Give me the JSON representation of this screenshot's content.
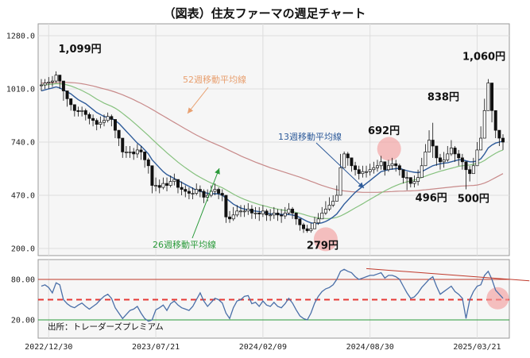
{
  "title": "（図表）住友ファーマの週足チャート",
  "source": "出所：トレーダーズプレミアム",
  "colors": {
    "candle_body": "#111111",
    "candle_wick": "#111111",
    "ma13": "#2e5b9a",
    "ma26": "#86c17e",
    "ma52": "#c88a8a",
    "ma13_label": "#2e5b9a",
    "ma26_label": "#2a9a3a",
    "ma52_label": "#e8a070",
    "rsi_line": "#4a6fa8",
    "rsi_upper": "#c0392b",
    "rsi_lower": "#2a9a3a",
    "rsi_mid": "#e53935",
    "highlight": "#f2a0a0",
    "grid": "#dddddd",
    "panel_bg": "#f6f6f6"
  },
  "chart_data": [
    {
      "type": "candlestick",
      "title": "",
      "ylim": [
        200,
        1280
      ],
      "yticks": [
        "1280.0",
        "1010.0",
        "740.0",
        "470.0",
        "200.0"
      ],
      "ytick_values": [
        1280,
        1010,
        740,
        470,
        200
      ],
      "xticks": [
        "2022/12/30",
        "2023/07/21",
        "2024/02/09",
        "2024/08/30",
        "2025/03/21"
      ],
      "grid": true,
      "annotations": [
        {
          "label": "1,099円",
          "week": 4,
          "value": 1099
        },
        {
          "label": "279円",
          "week": 77,
          "value": 279
        },
        {
          "label": "692円",
          "week": 88,
          "value": 692
        },
        {
          "label": "496円",
          "week": 103,
          "value": 496
        },
        {
          "label": "838円",
          "week": 111,
          "value": 838
        },
        {
          "label": "1,060円",
          "week": 122,
          "value": 1060
        },
        {
          "label": "500円",
          "week": 117,
          "value": 500
        }
      ],
      "ma_labels": [
        {
          "label": "52週移動平均線",
          "series": "ma52"
        },
        {
          "label": "13週移動平均線",
          "series": "ma13"
        },
        {
          "label": "26週移動平均線",
          "series": "ma26"
        }
      ],
      "weekly_close": [
        1030,
        1040,
        1045,
        1050,
        1080,
        1050,
        1000,
        960,
        930,
        900,
        895,
        900,
        880,
        860,
        850,
        830,
        840,
        850,
        870,
        855,
        800,
        760,
        690,
        690,
        690,
        680,
        700,
        690,
        650,
        620,
        520,
        520,
        510,
        530,
        520,
        540,
        550,
        510,
        500,
        490,
        480,
        480,
        500,
        490,
        460,
        470,
        490,
        500,
        480,
        470,
        360,
        350,
        370,
        390,
        390,
        390,
        400,
        380,
        380,
        375,
        390,
        370,
        370,
        380,
        370,
        365,
        380,
        400,
        380,
        350,
        320,
        300,
        290,
        300,
        330,
        350,
        380,
        400,
        420,
        440,
        470,
        610,
        680,
        660,
        620,
        600,
        580,
        590,
        590,
        600,
        610,
        620,
        640,
        600,
        620,
        630,
        620,
        600,
        560,
        560,
        530,
        540,
        560,
        620,
        690,
        750,
        720,
        660,
        640,
        650,
        680,
        710,
        680,
        660,
        640,
        600,
        580,
        620,
        700,
        760,
        900,
        1040,
        900,
        800,
        760,
        740
      ],
      "weekly_high": [
        1060,
        1060,
        1070,
        1075,
        1099,
        1080,
        1030,
        990,
        960,
        930,
        920,
        920,
        910,
        890,
        880,
        860,
        870,
        880,
        890,
        880,
        830,
        790,
        720,
        720,
        720,
        710,
        730,
        720,
        690,
        660,
        560,
        560,
        550,
        560,
        560,
        570,
        580,
        550,
        540,
        520,
        510,
        510,
        530,
        520,
        500,
        500,
        520,
        530,
        510,
        500,
        400,
        390,
        410,
        420,
        420,
        420,
        430,
        420,
        410,
        410,
        420,
        400,
        400,
        410,
        400,
        400,
        410,
        430,
        410,
        380,
        350,
        330,
        320,
        330,
        360,
        380,
        410,
        440,
        460,
        470,
        520,
        680,
        692,
        690,
        660,
        640,
        620,
        620,
        620,
        630,
        640,
        650,
        670,
        630,
        650,
        660,
        650,
        630,
        590,
        590,
        560,
        570,
        600,
        660,
        730,
        800,
        838,
        700,
        680,
        690,
        720,
        750,
        720,
        700,
        680,
        640,
        620,
        660,
        740,
        820,
        960,
        1060,
        960,
        850,
        800,
        780
      ],
      "weekly_low": [
        1000,
        1010,
        1010,
        1020,
        1040,
        1010,
        950,
        920,
        900,
        870,
        870,
        870,
        850,
        830,
        820,
        800,
        810,
        820,
        840,
        820,
        760,
        720,
        660,
        660,
        660,
        650,
        660,
        650,
        610,
        580,
        480,
        490,
        480,
        500,
        490,
        510,
        520,
        480,
        470,
        460,
        450,
        450,
        470,
        460,
        430,
        440,
        460,
        470,
        450,
        440,
        330,
        330,
        340,
        360,
        360,
        360,
        370,
        350,
        350,
        340,
        360,
        340,
        340,
        350,
        340,
        330,
        350,
        370,
        350,
        320,
        290,
        279,
        280,
        280,
        300,
        320,
        350,
        370,
        390,
        410,
        440,
        560,
        640,
        620,
        590,
        570,
        550,
        560,
        560,
        570,
        580,
        590,
        600,
        570,
        590,
        600,
        590,
        570,
        530,
        496,
        510,
        510,
        520,
        580,
        650,
        700,
        660,
        620,
        600,
        610,
        640,
        670,
        640,
        620,
        600,
        500,
        540,
        580,
        650,
        700,
        840,
        960,
        840,
        760,
        720,
        700
      ],
      "ma13": [
        1000,
        1005,
        1010,
        1015,
        1020,
        1015,
        1005,
        995,
        985,
        970,
        955,
        945,
        935,
        920,
        905,
        890,
        880,
        870,
        865,
        860,
        850,
        835,
        815,
        795,
        775,
        755,
        735,
        720,
        700,
        680,
        650,
        630,
        610,
        590,
        575,
        565,
        555,
        545,
        535,
        525,
        515,
        505,
        495,
        490,
        485,
        480,
        478,
        478,
        477,
        470,
        455,
        440,
        425,
        415,
        405,
        400,
        395,
        392,
        390,
        387,
        385,
        380,
        375,
        375,
        375,
        373,
        372,
        372,
        370,
        365,
        357,
        347,
        337,
        330,
        327,
        327,
        330,
        337,
        347,
        360,
        375,
        400,
        425,
        445,
        465,
        485,
        500,
        515,
        530,
        545,
        560,
        575,
        590,
        595,
        600,
        603,
        605,
        607,
        600,
        595,
        590,
        587,
        585,
        590,
        600,
        610,
        620,
        625,
        630,
        633,
        635,
        640,
        645,
        650,
        650,
        645,
        640,
        640,
        645,
        655,
        680,
        710,
        725,
        735,
        740,
        745
      ],
      "ma26": [
        1030,
        1030,
        1032,
        1034,
        1036,
        1036,
        1034,
        1030,
        1025,
        1018,
        1010,
        1002,
        992,
        982,
        970,
        958,
        948,
        938,
        930,
        922,
        912,
        900,
        886,
        871,
        856,
        840,
        824,
        807,
        790,
        773,
        755,
        737,
        720,
        703,
        686,
        670,
        654,
        638,
        624,
        610,
        597,
        584,
        572,
        561,
        551,
        541,
        532,
        524,
        516,
        508,
        498,
        487,
        476,
        466,
        457,
        449,
        442,
        435,
        429,
        423,
        418,
        413,
        408,
        404,
        400,
        396,
        393,
        390,
        387,
        383,
        378,
        373,
        367,
        362,
        358,
        355,
        353,
        352,
        352,
        354,
        358,
        365,
        374,
        384,
        395,
        406,
        416,
        427,
        438,
        449,
        460,
        471,
        482,
        492,
        502,
        511,
        519,
        527,
        533,
        538,
        543,
        548,
        553,
        560,
        567,
        574,
        580,
        586,
        592,
        597,
        602,
        607,
        612,
        617,
        620,
        622,
        624,
        627,
        631,
        637,
        647,
        660,
        672,
        683,
        693,
        700
      ],
      "ma52": [
        1040,
        1040,
        1040,
        1041,
        1042,
        1043,
        1043,
        1043,
        1042,
        1041,
        1039,
        1036,
        1033,
        1029,
        1025,
        1020,
        1015,
        1010,
        1005,
        1000,
        994,
        987,
        980,
        972,
        964,
        955,
        946,
        937,
        927,
        917,
        906,
        895,
        884,
        873,
        862,
        851,
        840,
        829,
        818,
        807,
        797,
        786,
        776,
        766,
        757,
        748,
        739,
        731,
        723,
        715,
        706,
        697,
        688,
        679,
        670,
        662,
        654,
        646,
        638,
        631,
        624,
        617,
        610,
        604,
        598,
        592,
        586,
        580,
        574,
        568,
        562,
        555,
        548,
        541,
        534,
        527,
        520,
        514,
        508,
        503,
        498,
        495,
        492,
        490,
        488,
        487,
        486,
        485,
        485,
        485,
        485,
        485,
        486,
        487,
        488,
        489,
        490,
        491,
        491,
        492,
        492,
        493,
        494,
        496,
        498,
        500,
        502,
        504,
        506,
        508,
        510,
        512,
        514,
        516,
        517,
        518,
        519,
        520,
        522,
        526,
        532,
        540,
        550,
        560,
        570,
        580
      ]
    },
    {
      "type": "line",
      "title": "",
      "ylim": [
        0,
        100
      ],
      "yticks": [
        "80.00",
        "20.00"
      ],
      "ytick_values": [
        80,
        20
      ],
      "reference_lines": [
        {
          "value": 80,
          "style": "solid"
        },
        {
          "value": 20,
          "style": "solid"
        },
        {
          "value": 50,
          "style": "dashed"
        }
      ],
      "trendline": [
        {
          "week": 88,
          "value": 96
        },
        {
          "week": 130,
          "value": 78
        }
      ],
      "series": [
        {
          "values": [
            70,
            72,
            68,
            60,
            75,
            72,
            50,
            44,
            40,
            38,
            42,
            45,
            40,
            36,
            40,
            44,
            50,
            55,
            58,
            52,
            38,
            30,
            22,
            28,
            34,
            36,
            40,
            30,
            22,
            18,
            20,
            35,
            38,
            42,
            34,
            44,
            48,
            42,
            38,
            36,
            34,
            40,
            50,
            60,
            48,
            40,
            46,
            52,
            50,
            45,
            30,
            22,
            38,
            48,
            50,
            55,
            56,
            44,
            46,
            40,
            48,
            42,
            40,
            46,
            40,
            38,
            44,
            52,
            45,
            35,
            26,
            22,
            20,
            30,
            45,
            55,
            62,
            66,
            68,
            72,
            80,
            92,
            95,
            92,
            90,
            84,
            80,
            82,
            84,
            86,
            86,
            88,
            90,
            82,
            86,
            86,
            84,
            80,
            70,
            60,
            52,
            54,
            60,
            68,
            74,
            80,
            84,
            70,
            58,
            62,
            66,
            70,
            62,
            58,
            52,
            22,
            50,
            62,
            70,
            72,
            86,
            92,
            80,
            64,
            58,
            52
          ]
        }
      ]
    }
  ]
}
